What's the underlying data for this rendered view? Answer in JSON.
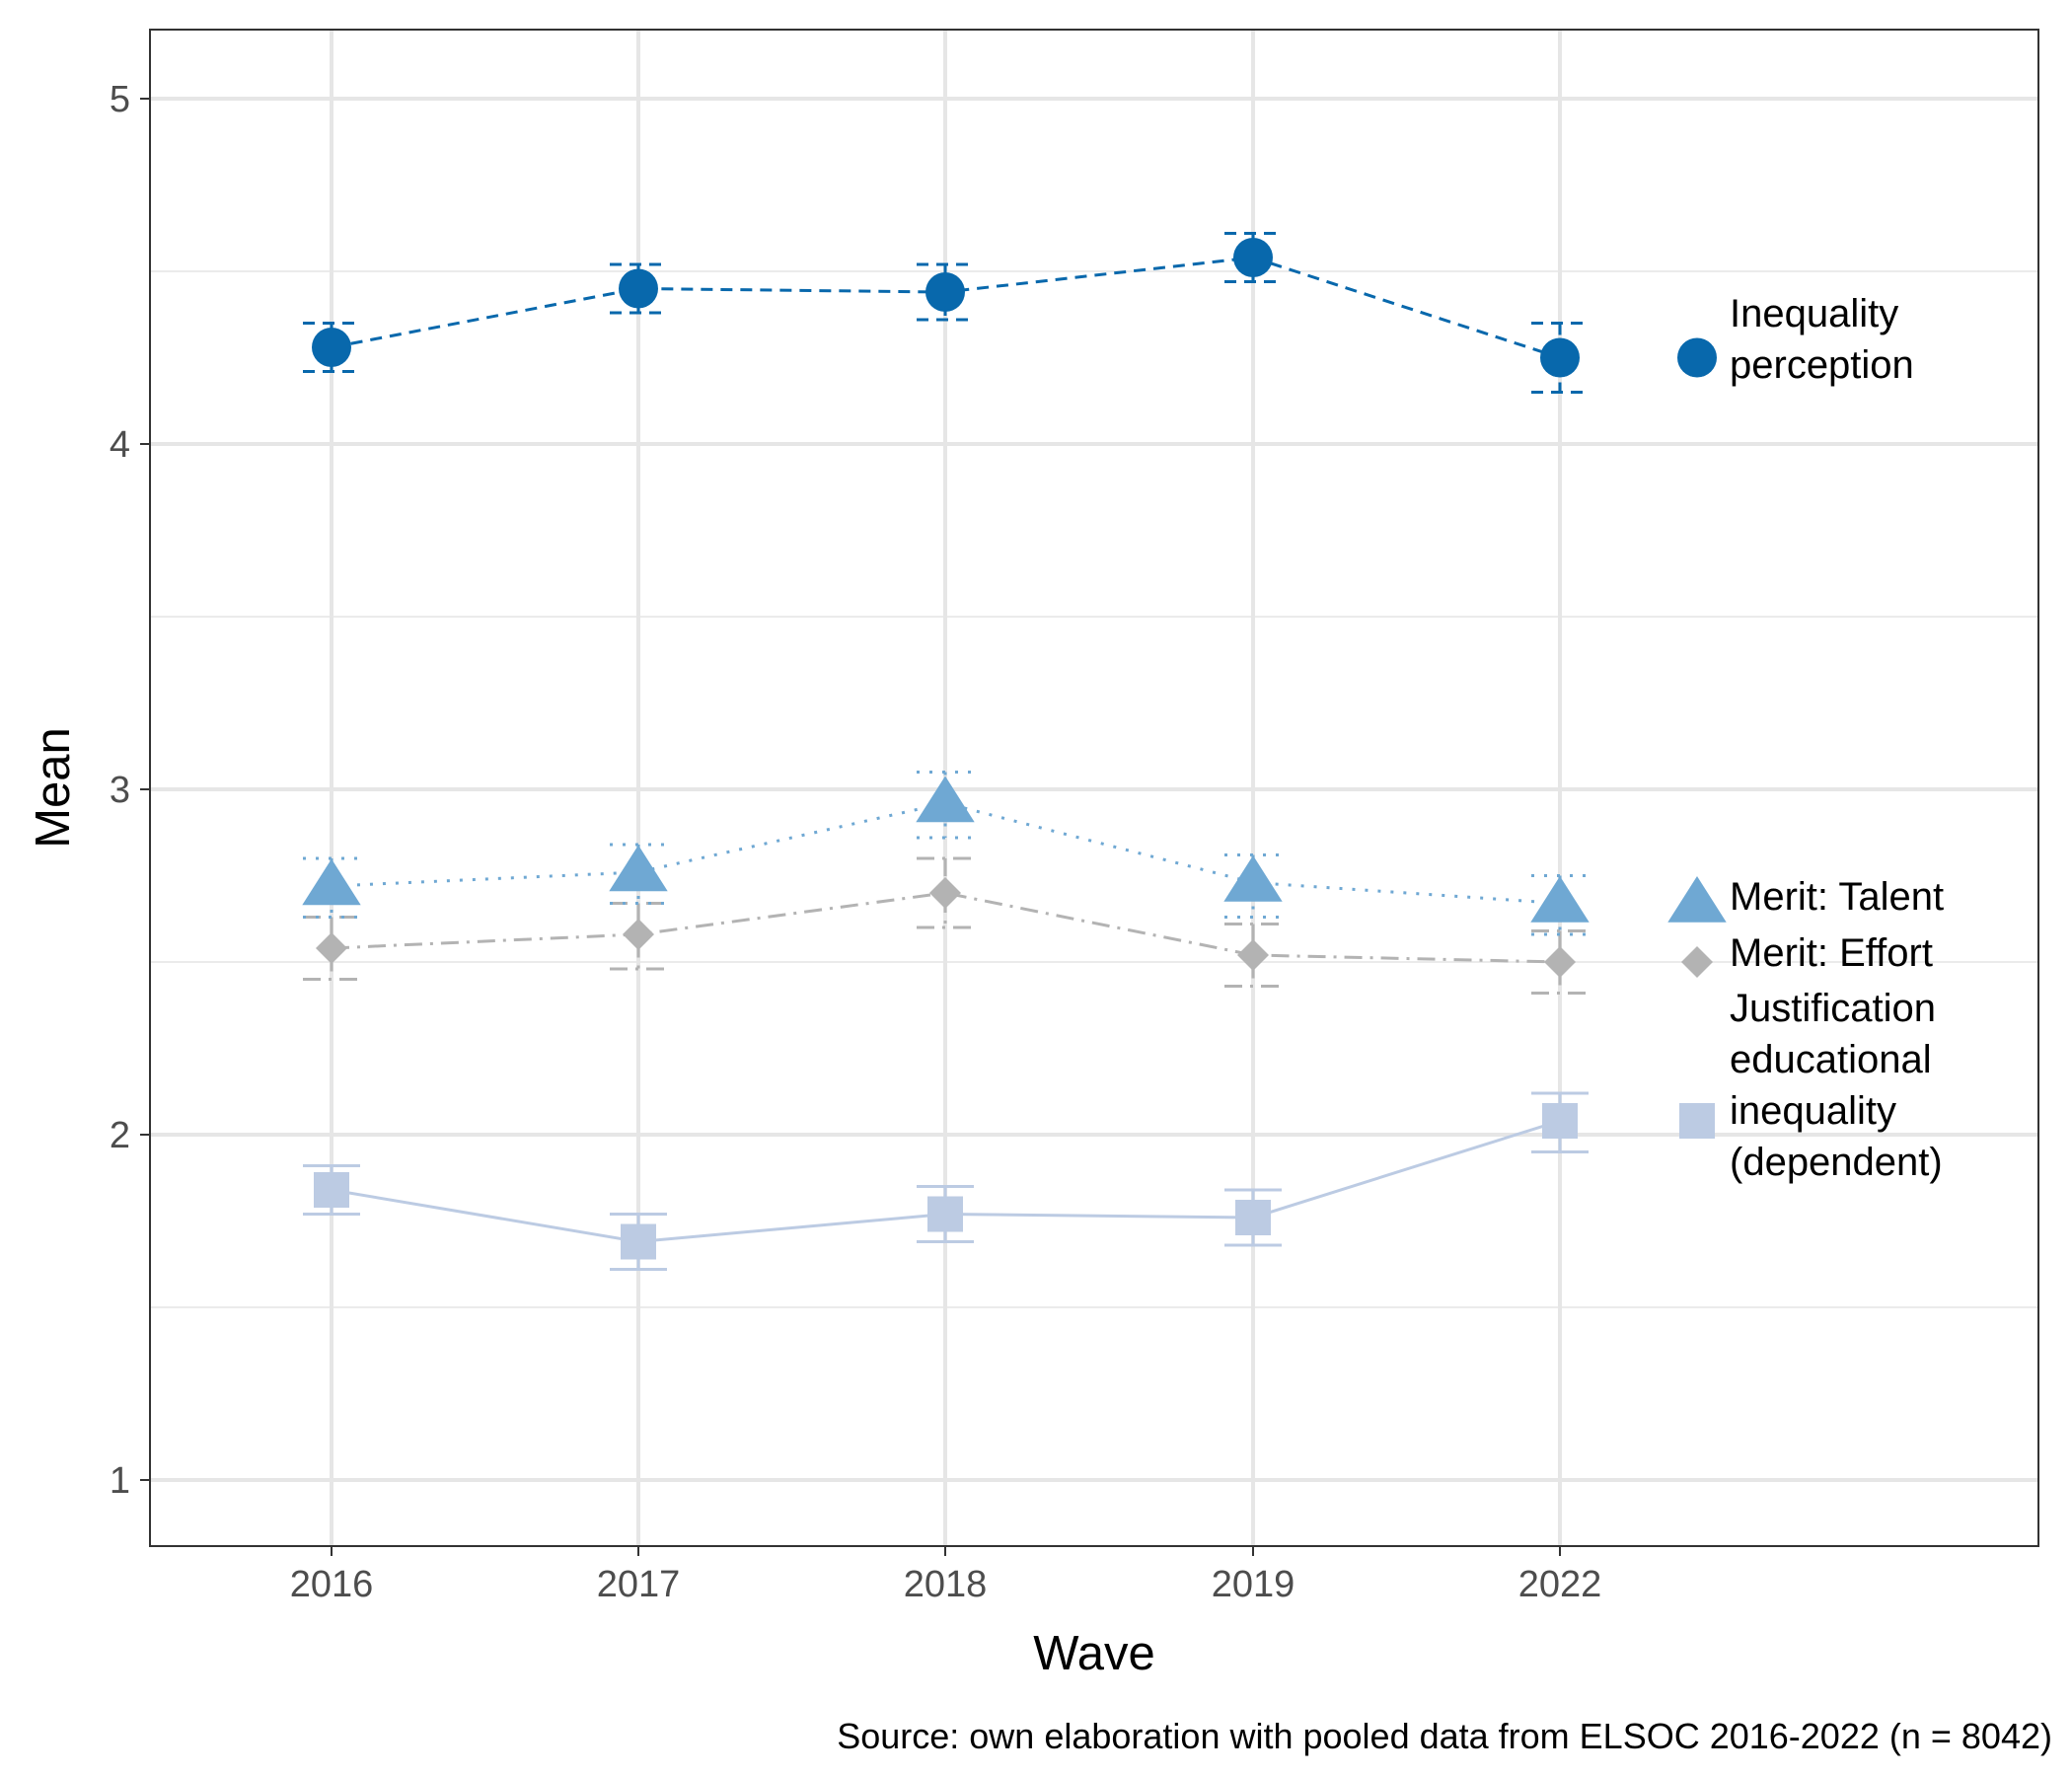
{
  "chart_data": {
    "type": "line",
    "xlabel": "Wave",
    "ylabel": "Mean",
    "caption": "Source: own elaboration with pooled data from ELSOC 2016-2022 (n = 8042)",
    "categories": [
      "2016",
      "2017",
      "2018",
      "2019",
      "2022"
    ],
    "ylim": [
      0.8,
      5.2
    ],
    "yticks": [
      1,
      2,
      3,
      4,
      5
    ],
    "grid": true,
    "legend_position": "right",
    "series": [
      {
        "id": "ineq",
        "name": "Inequality perception",
        "legend_lines": [
          "Inequality",
          "perception"
        ],
        "color": "#0868ac",
        "shape": "circle",
        "linestyle": "dashed",
        "values": [
          4.28,
          4.45,
          4.44,
          4.54,
          4.25
        ],
        "ci_low": [
          4.21,
          4.38,
          4.36,
          4.47,
          4.15
        ],
        "ci_high": [
          4.35,
          4.52,
          4.52,
          4.61,
          4.35
        ]
      },
      {
        "id": "talent",
        "name": "Merit: Talent",
        "legend_lines": [
          "Merit: Talent"
        ],
        "color": "#6fa8d3",
        "shape": "triangle",
        "linestyle": "dotted",
        "values": [
          2.72,
          2.76,
          2.96,
          2.73,
          2.67
        ],
        "ci_low": [
          2.63,
          2.67,
          2.86,
          2.63,
          2.58
        ],
        "ci_high": [
          2.8,
          2.84,
          3.05,
          2.81,
          2.75
        ]
      },
      {
        "id": "effort",
        "name": "Merit: Effort",
        "legend_lines": [
          "Merit: Effort"
        ],
        "color": "#b3b3b3",
        "shape": "diamond",
        "linestyle": "dashdot",
        "values": [
          2.54,
          2.58,
          2.7,
          2.52,
          2.5
        ],
        "ci_low": [
          2.45,
          2.48,
          2.6,
          2.43,
          2.41
        ],
        "ci_high": [
          2.63,
          2.67,
          2.8,
          2.61,
          2.59
        ]
      },
      {
        "id": "just",
        "name": "Justification educational inequality (dependent)",
        "legend_lines": [
          "Justification",
          "educational",
          "inequality",
          "(dependent)"
        ],
        "color": "#bccbe3",
        "shape": "square",
        "linestyle": "solid",
        "values": [
          1.84,
          1.69,
          1.77,
          1.76,
          2.04
        ],
        "ci_low": [
          1.77,
          1.61,
          1.69,
          1.68,
          1.95
        ],
        "ci_high": [
          1.91,
          1.77,
          1.85,
          1.84,
          2.12
        ]
      }
    ]
  }
}
